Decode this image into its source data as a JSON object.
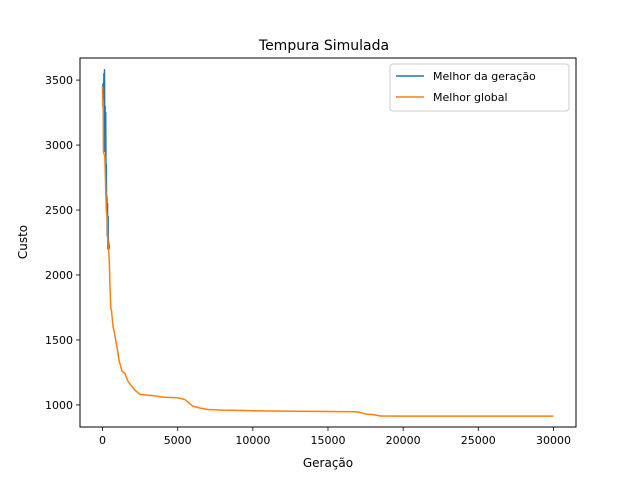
{
  "chart_data": {
    "type": "line",
    "title": "Tempura Simulada",
    "xlabel": "Geração",
    "ylabel": "Custo",
    "xlim": [
      -1500,
      31500
    ],
    "ylim": [
      830,
      3670
    ],
    "xticks": [
      0,
      5000,
      10000,
      15000,
      20000,
      25000,
      30000
    ],
    "yticks": [
      1000,
      1500,
      2000,
      2500,
      3000,
      3500
    ],
    "grid": false,
    "legend_position": "top-right",
    "series": [
      {
        "name": "Melhor da geração",
        "color": "#1f77b4",
        "x": [
          0,
          30,
          60,
          90,
          110,
          130,
          150,
          170,
          190,
          210,
          230,
          250,
          270,
          290,
          310,
          330,
          350,
          370,
          390,
          410,
          430,
          450
        ],
        "y": [
          3400,
          3470,
          3200,
          3550,
          3000,
          3580,
          2950,
          3300,
          3100,
          3250,
          2700,
          2850,
          2500,
          2600,
          2300,
          2550,
          2200,
          2450,
          2210,
          2250,
          2200,
          2230
        ]
      },
      {
        "name": "Melhor global",
        "color": "#ff7f0e",
        "x": [
          0,
          20,
          40,
          60,
          100,
          150,
          200,
          250,
          300,
          350,
          400,
          450,
          500,
          550,
          600,
          700,
          800,
          900,
          1000,
          1100,
          1200,
          1300,
          1500,
          1700,
          1900,
          2100,
          2300,
          2500,
          3000,
          3500,
          4000,
          5000,
          5500,
          6000,
          6200,
          6500,
          7000,
          8000,
          9000,
          10000,
          12000,
          14000,
          16000,
          17000,
          17500,
          18000,
          18500,
          20000,
          25000,
          30000
        ],
        "y": [
          3450,
          3300,
          3350,
          2950,
          2930,
          2920,
          2700,
          2500,
          2450,
          2250,
          2200,
          2100,
          1900,
          1750,
          1720,
          1600,
          1550,
          1480,
          1420,
          1340,
          1300,
          1260,
          1240,
          1180,
          1150,
          1120,
          1100,
          1080,
          1075,
          1070,
          1060,
          1055,
          1040,
          990,
          985,
          975,
          965,
          960,
          958,
          955,
          952,
          950,
          948,
          946,
          930,
          925,
          915,
          914,
          914,
          914
        ]
      }
    ]
  }
}
